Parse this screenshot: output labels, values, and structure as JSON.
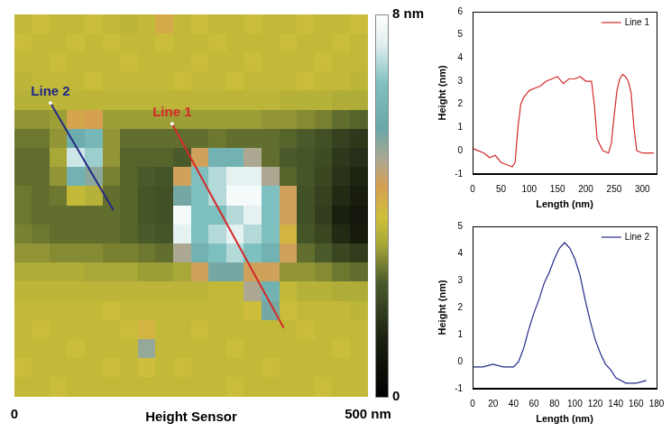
{
  "chart_data": [
    {
      "type": "heatmap",
      "x": [
        12.5,
        37.5,
        62.5,
        87.5,
        112.5,
        137.5,
        162.5,
        187.5,
        212.5,
        237.5,
        262.5,
        287.5,
        312.5,
        337.5,
        362.5,
        387.5,
        412.5,
        437.5,
        462.5,
        487.5
      ],
      "y": [
        487.5,
        462.5,
        437.5,
        412.5,
        387.5,
        362.5,
        337.5,
        312.5,
        287.5,
        262.5,
        237.5,
        212.5,
        187.5,
        162.5,
        137.5,
        112.5,
        87.5,
        62.5,
        37.5,
        12.5
      ],
      "z": [
        [
          3.6,
          3.7,
          3.6,
          3.6,
          3.7,
          3.6,
          3.5,
          3.6,
          4.2,
          3.6,
          3.7,
          3.6,
          3.6,
          3.7,
          3.6,
          3.6,
          3.7,
          3.6,
          3.6,
          3.7
        ],
        [
          3.7,
          3.6,
          3.6,
          3.7,
          3.6,
          3.7,
          3.6,
          3.6,
          3.7,
          3.6,
          3.6,
          3.7,
          3.6,
          3.6,
          3.6,
          3.7,
          3.6,
          3.6,
          3.7,
          3.6
        ],
        [
          3.6,
          3.6,
          3.7,
          3.6,
          3.6,
          3.6,
          3.7,
          3.6,
          3.6,
          3.6,
          3.7,
          3.6,
          3.6,
          3.7,
          3.6,
          3.6,
          3.6,
          3.7,
          3.6,
          3.6
        ],
        [
          3.5,
          3.6,
          3.6,
          3.6,
          3.7,
          3.6,
          3.6,
          3.6,
          3.6,
          3.7,
          3.6,
          3.6,
          3.7,
          3.6,
          3.6,
          3.6,
          3.7,
          3.6,
          3.6,
          3.5
        ],
        [
          3.4,
          3.4,
          3.5,
          3.5,
          3.5,
          3.5,
          3.5,
          3.5,
          3.5,
          3.5,
          3.5,
          3.5,
          3.5,
          3.5,
          3.5,
          3.4,
          3.4,
          3.4,
          3.3,
          3.3
        ],
        [
          3.0,
          3.0,
          3.1,
          4.3,
          4.4,
          3.1,
          3.1,
          3.1,
          3.1,
          3.1,
          3.1,
          3.1,
          3.1,
          3.1,
          3.0,
          3.0,
          2.9,
          2.8,
          2.6,
          2.5
        ],
        [
          2.7,
          2.7,
          3.0,
          5.8,
          6.2,
          3.0,
          2.6,
          2.6,
          2.6,
          2.6,
          2.6,
          2.7,
          2.6,
          2.6,
          2.6,
          2.5,
          2.4,
          2.2,
          1.9,
          1.7
        ],
        [
          2.6,
          2.6,
          3.2,
          7.2,
          6.8,
          3.0,
          2.5,
          2.5,
          2.5,
          2.4,
          4.5,
          6.0,
          6.0,
          5.0,
          2.6,
          2.4,
          2.3,
          2.1,
          1.7,
          1.5
        ],
        [
          2.6,
          2.6,
          3.0,
          6.0,
          5.3,
          2.8,
          2.5,
          2.4,
          2.3,
          4.5,
          6.5,
          7.0,
          7.5,
          7.5,
          5.0,
          2.5,
          2.3,
          2.0,
          1.6,
          1.3
        ],
        [
          2.7,
          2.6,
          2.7,
          3.6,
          3.4,
          2.6,
          2.5,
          2.3,
          2.2,
          5.5,
          6.5,
          7.0,
          7.8,
          7.8,
          6.5,
          4.5,
          2.2,
          1.9,
          1.4,
          1.1
        ],
        [
          2.7,
          2.6,
          2.6,
          2.6,
          2.6,
          2.6,
          2.5,
          2.3,
          2.2,
          7.8,
          6.5,
          6.5,
          7.0,
          7.5,
          6.5,
          4.5,
          2.2,
          1.8,
          1.2,
          0.9
        ],
        [
          2.8,
          2.7,
          2.6,
          2.6,
          2.6,
          2.6,
          2.5,
          2.4,
          2.3,
          7.5,
          6.5,
          7.0,
          7.5,
          7.0,
          6.5,
          4.0,
          2.3,
          2.0,
          1.4,
          1.0
        ],
        [
          3.0,
          3.0,
          2.9,
          2.9,
          2.9,
          2.8,
          2.8,
          2.7,
          2.6,
          5.0,
          6.0,
          6.5,
          7.0,
          6.5,
          6.0,
          4.5,
          2.6,
          2.4,
          2.0,
          1.8
        ],
        [
          3.3,
          3.3,
          3.3,
          3.3,
          3.2,
          3.2,
          3.2,
          3.1,
          3.1,
          3.2,
          4.5,
          5.5,
          5.5,
          4.5,
          4.5,
          3.0,
          3.0,
          2.9,
          2.7,
          2.6
        ],
        [
          3.5,
          3.5,
          3.5,
          3.5,
          3.5,
          3.5,
          3.5,
          3.5,
          3.5,
          3.5,
          3.5,
          3.6,
          3.6,
          5.0,
          6.0,
          3.6,
          3.4,
          3.4,
          3.3,
          3.3
        ],
        [
          3.6,
          3.6,
          3.6,
          3.6,
          3.6,
          3.7,
          3.6,
          3.6,
          3.6,
          3.6,
          3.6,
          3.6,
          3.6,
          3.8,
          5.5,
          3.7,
          3.6,
          3.6,
          3.6,
          3.5
        ],
        [
          3.6,
          3.7,
          3.6,
          3.6,
          3.6,
          3.6,
          3.7,
          4.0,
          3.6,
          3.6,
          3.7,
          3.6,
          3.6,
          3.6,
          3.6,
          3.6,
          3.7,
          3.6,
          3.6,
          3.6
        ],
        [
          3.6,
          3.6,
          3.6,
          3.7,
          3.6,
          3.6,
          3.6,
          5.2,
          3.6,
          3.6,
          3.6,
          3.6,
          3.7,
          3.6,
          3.6,
          3.6,
          3.6,
          3.6,
          3.7,
          3.6
        ],
        [
          3.7,
          3.6,
          3.6,
          3.6,
          3.6,
          3.7,
          3.6,
          3.8,
          3.6,
          3.7,
          3.6,
          3.6,
          3.6,
          3.6,
          3.7,
          3.6,
          3.6,
          3.6,
          3.6,
          3.6
        ],
        [
          3.6,
          3.6,
          3.7,
          3.6,
          3.6,
          3.6,
          3.6,
          3.6,
          3.6,
          3.6,
          3.6,
          3.6,
          3.7,
          3.6,
          3.6,
          3.6,
          3.6,
          3.7,
          3.6,
          3.6
        ]
      ],
      "xlim": [
        0,
        500
      ],
      "ylim": [
        0,
        500
      ],
      "xticks": [
        0,
        {
          "value": 500,
          "label": "500 nm"
        }
      ],
      "x_label": "Height Sensor",
      "tick_labels": "x",
      "colorbar_range": [
        0,
        8
      ],
      "colorbar_ticks": [
        0,
        {
          "value": 8,
          "label": "8 nm"
        }
      ],
      "lines": [
        {
          "name": "Line 1",
          "color": "#d42a2a",
          "x": [
            223,
            381
          ],
          "y": [
            357,
            90
          ]
        },
        {
          "name": "Line 2",
          "color": "#232a86",
          "x": [
            51,
            140
          ],
          "y": [
            384,
            244
          ]
        }
      ]
    },
    {
      "type": "line",
      "x_label": "Length (nm)",
      "y_label": "Height (nm)",
      "x": [
        0,
        10,
        20,
        30,
        40,
        50,
        60,
        70,
        75,
        80,
        85,
        90,
        100,
        110,
        120,
        130,
        140,
        150,
        160,
        170,
        180,
        190,
        200,
        210,
        215,
        220,
        230,
        240,
        245,
        250,
        255,
        260,
        265,
        270,
        275,
        280,
        285,
        290,
        300,
        310,
        320
      ],
      "series": [
        {
          "name": "Line 1",
          "color": "#d42a2a",
          "values": [
            0.1,
            0.0,
            -0.1,
            -0.3,
            -0.2,
            -0.5,
            -0.6,
            -0.7,
            -0.5,
            1.0,
            2.0,
            2.3,
            2.6,
            2.7,
            2.8,
            3.0,
            3.1,
            3.2,
            2.9,
            3.1,
            3.1,
            3.2,
            3.0,
            3.0,
            2.0,
            0.5,
            0.0,
            -0.1,
            0.3,
            1.5,
            2.6,
            3.1,
            3.3,
            3.2,
            3.0,
            2.5,
            1.0,
            0.0,
            -0.1,
            -0.1,
            -0.1
          ]
        }
      ],
      "xlim": [
        0,
        325
      ],
      "xticks": [
        0,
        50,
        100,
        150,
        200,
        250,
        300
      ],
      "ylim": [
        -1,
        6
      ],
      "yticks": [
        -1,
        0,
        1,
        2,
        3,
        4,
        5,
        6
      ],
      "grid": false,
      "legend": "top-right"
    },
    {
      "type": "line",
      "x_label": "Length (nm)",
      "y_label": "Height (nm)",
      "x": [
        0,
        10,
        20,
        30,
        40,
        45,
        50,
        55,
        60,
        65,
        70,
        75,
        80,
        85,
        90,
        95,
        100,
        105,
        110,
        115,
        120,
        125,
        130,
        135,
        140,
        150,
        160,
        170
      ],
      "series": [
        {
          "name": "Line 2",
          "color": "#232a86",
          "values": [
            -0.2,
            -0.2,
            -0.1,
            -0.2,
            -0.2,
            0.0,
            0.5,
            1.2,
            1.8,
            2.3,
            2.9,
            3.3,
            3.8,
            4.2,
            4.4,
            4.2,
            3.8,
            3.2,
            2.3,
            1.5,
            0.8,
            0.3,
            -0.1,
            -0.3,
            -0.6,
            -0.8,
            -0.8,
            -0.7
          ]
        }
      ],
      "xlim": [
        0,
        180
      ],
      "xticks": [
        0,
        20,
        40,
        60,
        80,
        100,
        120,
        140,
        160,
        180
      ],
      "ylim": [
        -1,
        5
      ],
      "yticks": [
        -1,
        0,
        1,
        2,
        3,
        4,
        5
      ],
      "grid": false,
      "legend": "top-right"
    }
  ]
}
